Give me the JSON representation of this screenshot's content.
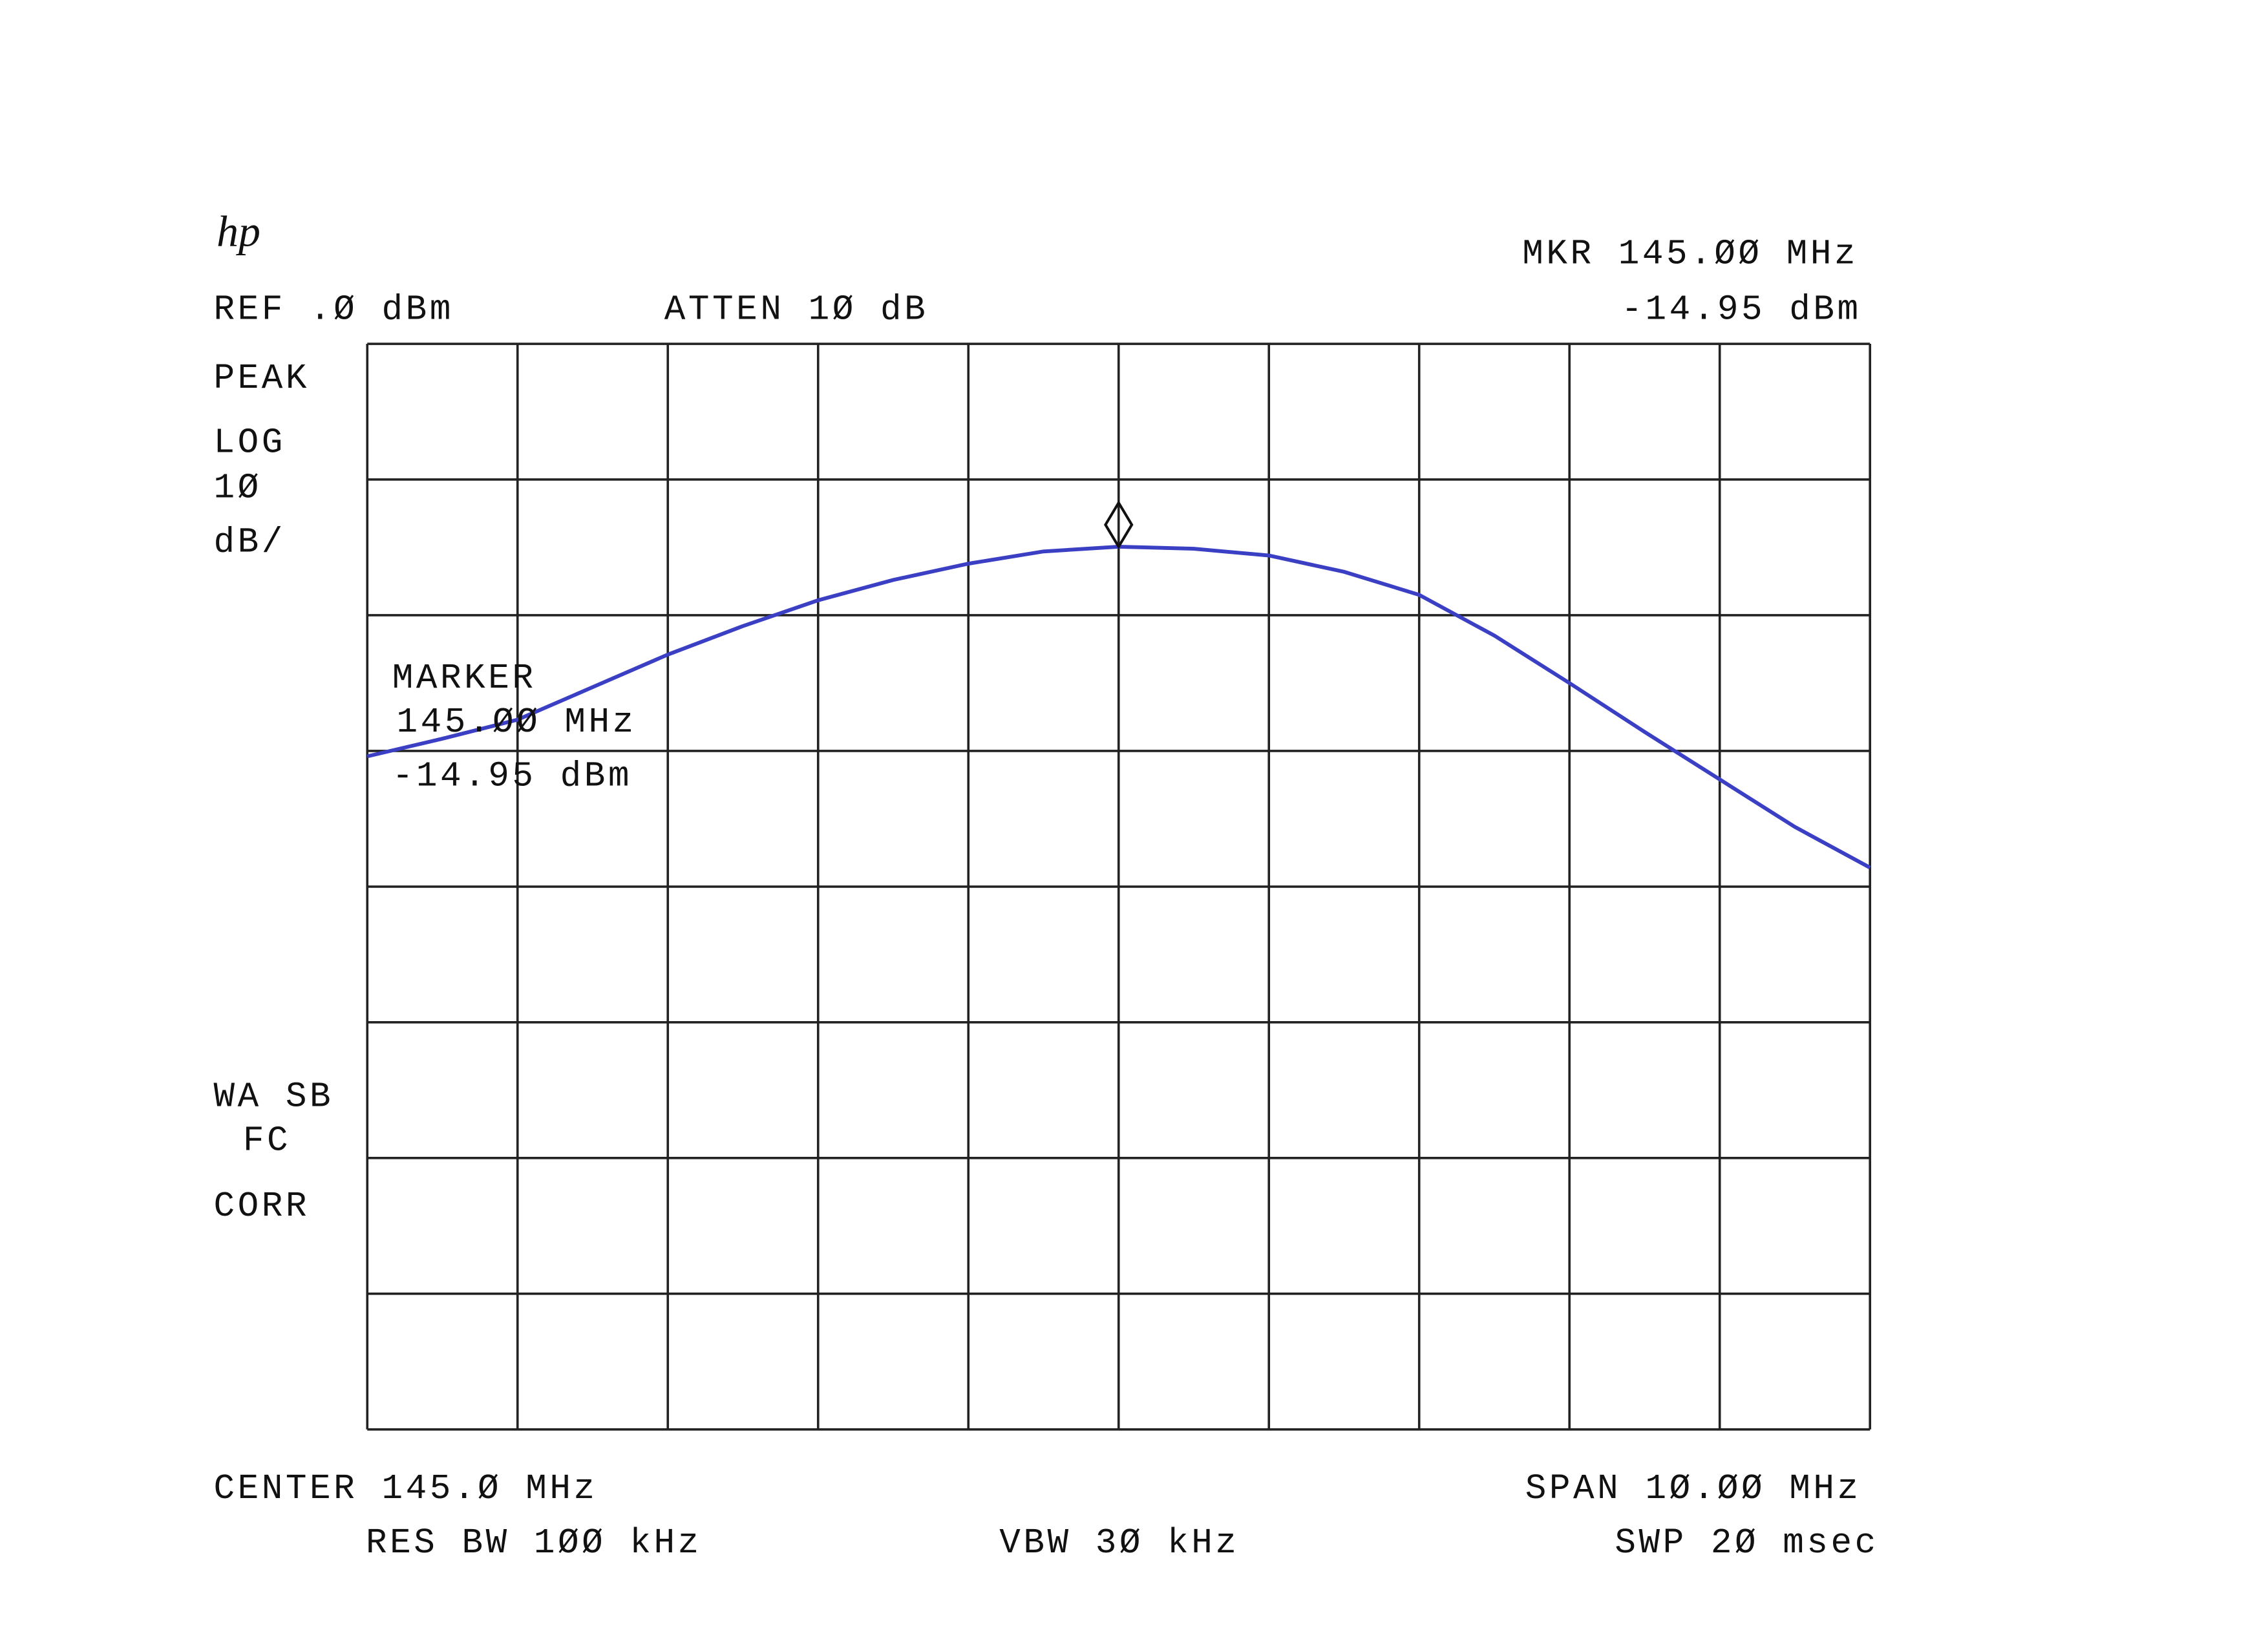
{
  "chart_data": {
    "type": "line",
    "logo": "hp",
    "texts": {
      "ref": "REF .Ø dBm",
      "atten": "ATTEN 1Ø dB",
      "mkr_freq": "MKR 145.ØØ MHz",
      "mkr_level": "-14.95 dBm",
      "detector": "PEAK",
      "scale_1": "LOG",
      "scale_2": "1Ø",
      "scale_3": "dB/",
      "marker_title": "MARKER",
      "marker_freq": "145.ØØ MHz",
      "marker_level": "-14.95 dBm",
      "wa_sb": "WA SB",
      "fc": "FC",
      "corr": "CORR",
      "center": "CENTER 145.Ø MHz",
      "span": "SPAN 1Ø.ØØ MHz",
      "res_bw": "RES BW 1ØØ kHz",
      "vbw": "VBW 3Ø kHz",
      "swp": "SWP 2Ø msec"
    },
    "x": [
      140,
      140.5,
      141,
      141.5,
      142,
      142.5,
      143,
      143.5,
      144,
      144.5,
      145,
      145.5,
      146,
      146.5,
      147,
      147.5,
      148,
      148.5,
      149,
      149.5,
      150
    ],
    "series": [
      {
        "color": "#3b3fc4",
        "values": [
          -30.4,
          -29.1,
          -27.7,
          -25.3,
          -22.9,
          -20.8,
          -18.9,
          -17.4,
          -16.2,
          -15.3,
          -14.95,
          -15.1,
          -15.6,
          -16.8,
          -18.5,
          -21.5,
          -25.0,
          -28.6,
          -32.1,
          -35.6,
          -38.6
        ]
      }
    ],
    "marker": {
      "x": 145,
      "y": -14.95
    },
    "xlim": [
      140,
      150
    ],
    "ylim": [
      -80,
      0
    ],
    "xticks": [
      140,
      141,
      142,
      143,
      144,
      145,
      146,
      147,
      148,
      149,
      150
    ],
    "yticks": [
      -80,
      -70,
      -60,
      -50,
      -40,
      -30,
      -20,
      -10,
      0
    ],
    "grid": true
  }
}
